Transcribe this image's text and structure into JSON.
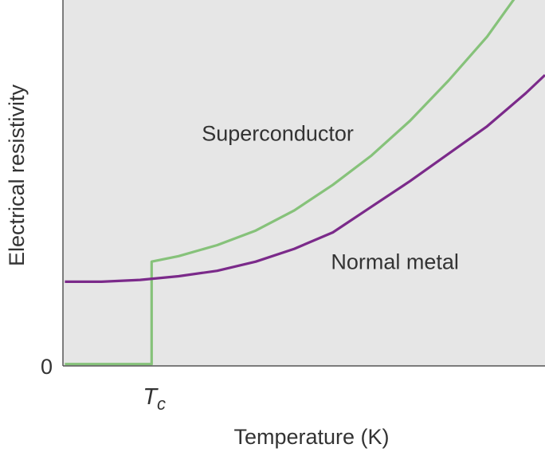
{
  "chart_data": {
    "type": "line",
    "title": "",
    "xlabel": "Temperature (K)",
    "ylabel": "Electrical resistivity",
    "x_ticks": [
      {
        "value": 4.6,
        "label_main": "T",
        "label_sub": "c"
      }
    ],
    "y_ticks": [
      {
        "value": 0,
        "label": "0"
      }
    ],
    "xlim": [
      0,
      25
    ],
    "ylim": [
      0,
      20
    ],
    "grid": false,
    "legend": "none",
    "plot_background": "#e6e6e6",
    "series": [
      {
        "name": "Superconductor",
        "color": "#86c27a",
        "label_position": {
          "x": 7.2,
          "y": 12.3
        },
        "points": [
          [
            0.1,
            0.1
          ],
          [
            4.6,
            0.1
          ],
          [
            4.6,
            5.7
          ],
          [
            6.0,
            6.0
          ],
          [
            8.0,
            6.6
          ],
          [
            10.0,
            7.4
          ],
          [
            12.0,
            8.5
          ],
          [
            14.0,
            9.9
          ],
          [
            16.0,
            11.5
          ],
          [
            18.0,
            13.4
          ],
          [
            20.0,
            15.6
          ],
          [
            22.0,
            18.0
          ],
          [
            25.0,
            22.4
          ]
        ]
      },
      {
        "name": "Normal metal",
        "color": "#7b2a8a",
        "label_position": {
          "x": 13.9,
          "y": 5.3
        },
        "points": [
          [
            0.1,
            4.6
          ],
          [
            2.0,
            4.6
          ],
          [
            4.0,
            4.7
          ],
          [
            6.0,
            4.9
          ],
          [
            8.0,
            5.2
          ],
          [
            10.0,
            5.7
          ],
          [
            12.0,
            6.4
          ],
          [
            14.0,
            7.3
          ],
          [
            16.0,
            8.7
          ],
          [
            18.0,
            10.1
          ],
          [
            20.0,
            11.6
          ],
          [
            22.0,
            13.1
          ],
          [
            24.0,
            14.9
          ],
          [
            25.0,
            15.9
          ]
        ]
      }
    ]
  }
}
